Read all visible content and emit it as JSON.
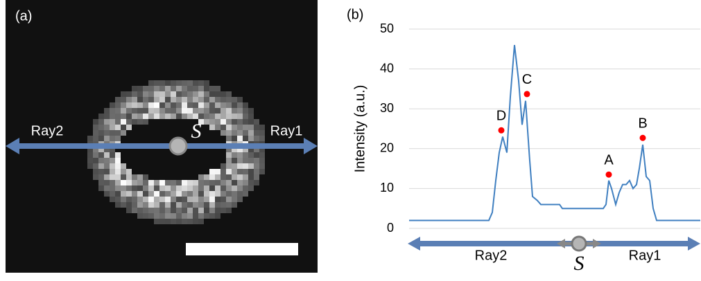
{
  "panel_a": {
    "label": "(a)",
    "left_ray": "Ray2",
    "right_ray": "Ray1",
    "source": "S"
  },
  "chart_data": {
    "type": "line",
    "label": "(b)",
    "y_label": "Intensity (a.u.)",
    "x": [
      0,
      115,
      120,
      125,
      130,
      135,
      141,
      146,
      152,
      158,
      163,
      168,
      174,
      178,
      185,
      190,
      217,
      221,
      280,
      284,
      288,
      292,
      298,
      303,
      308,
      313,
      318,
      323,
      328,
      332,
      337,
      342,
      347,
      352,
      357,
      420
    ],
    "series": [
      {
        "name": null,
        "color": "#3f7fc0",
        "values": [
          2,
          2,
          4,
          12,
          19,
          23,
          19,
          33,
          46,
          37,
          26,
          32,
          17,
          8,
          7,
          6,
          6,
          5,
          5,
          6,
          12,
          10,
          6,
          9,
          11,
          11,
          12,
          10,
          11,
          15,
          21,
          13,
          12,
          5,
          2,
          2
        ]
      }
    ],
    "points": {
      "color": "#ff0000",
      "labels": [
        "D",
        "C",
        "A",
        "B"
      ],
      "x": [
        133,
        170,
        288,
        337
      ],
      "values": [
        24.6,
        33.7,
        13.5,
        22.7
      ]
    },
    "xlim": [
      0,
      420
    ],
    "ylim": [
      0,
      50
    ],
    "yticks": [
      0,
      10,
      20,
      30,
      40,
      50
    ],
    "grid": true,
    "left_ray": "Ray2",
    "right_ray": "Ray1",
    "source": "S"
  }
}
